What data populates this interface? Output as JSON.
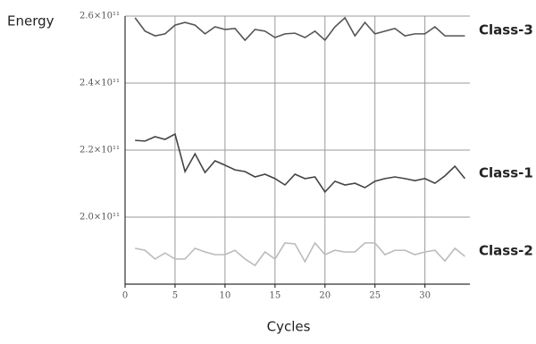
{
  "chart_data": {
    "type": "line",
    "y_label": "Energy",
    "x_label": "Cycles",
    "x": [
      1,
      2,
      3,
      4,
      5,
      6,
      7,
      8,
      9,
      10,
      11,
      12,
      13,
      14,
      15,
      16,
      17,
      18,
      19,
      20,
      21,
      22,
      23,
      24,
      25,
      26,
      27,
      28,
      29,
      30,
      31,
      32,
      33,
      34
    ],
    "series": [
      {
        "name": "Class-3",
        "color": "#555555",
        "values": [
          259500000000.0,
          255500000000.0,
          254100000000.0,
          254700000000.0,
          257300000000.0,
          258100000000.0,
          257300000000.0,
          254700000000.0,
          256800000000.0,
          256000000000.0,
          256300000000.0,
          252800000000.0,
          256000000000.0,
          255500000000.0,
          253600000000.0,
          254700000000.0,
          254900000000.0,
          253600000000.0,
          255500000000.0,
          252800000000.0,
          256800000000.0,
          259500000000.0,
          254100000000.0,
          258100000000.0,
          254700000000.0,
          255500000000.0,
          256300000000.0,
          254100000000.0,
          254700000000.0,
          254700000000.0,
          256800000000.0,
          254100000000.0,
          254100000000.0,
          254100000000.0
        ]
      },
      {
        "name": "Class-1",
        "color": "#444444",
        "values": [
          222900000000.0,
          222700000000.0,
          224000000000.0,
          223200000000.0,
          224800000000.0,
          213600000000.0,
          218900000000.0,
          213300000000.0,
          216800000000.0,
          215500000000.0,
          214100000000.0,
          213600000000.0,
          212000000000.0,
          212800000000.0,
          211500000000.0,
          209600000000.0,
          212800000000.0,
          211500000000.0,
          212000000000.0,
          207500000000.0,
          210700000000.0,
          209600000000.0,
          210100000000.0,
          208800000000.0,
          210700000000.0,
          211500000000.0,
          212000000000.0,
          211500000000.0,
          210900000000.0,
          211500000000.0,
          210100000000.0,
          212300000000.0,
          215200000000.0,
          211500000000.0
        ]
      },
      {
        "name": "Class-2",
        "color": "#bbbbbb",
        "values": [
          190700000000.0,
          190100000000.0,
          187500000000.0,
          189300000000.0,
          187500000000.0,
          187500000000.0,
          190700000000.0,
          189600000000.0,
          188800000000.0,
          188800000000.0,
          190100000000.0,
          187500000000.0,
          185600000000.0,
          189600000000.0,
          187500000000.0,
          192300000000.0,
          192000000000.0,
          186700000000.0,
          192300000000.0,
          188800000000.0,
          190100000000.0,
          189600000000.0,
          189600000000.0,
          192300000000.0,
          192300000000.0,
          188800000000.0,
          190100000000.0,
          190100000000.0,
          188800000000.0,
          189600000000.0,
          190100000000.0,
          186900000000.0,
          190700000000.0,
          188300000000.0
        ]
      }
    ],
    "xlim": [
      0,
      34.5
    ],
    "xticks": [
      0,
      5,
      10,
      15,
      20,
      25,
      30
    ],
    "ylim": [
      180000000000.0,
      260000000000.0
    ],
    "yticks": [
      {
        "value": 200000000000.0,
        "label": "2.0×10¹¹"
      },
      {
        "value": 220000000000.0,
        "label": "2.2×10¹¹"
      },
      {
        "value": 240000000000.0,
        "label": "2.4×10¹¹"
      },
      {
        "value": 260000000000.0,
        "label": "2.6×10¹¹"
      }
    ],
    "grid": true
  }
}
